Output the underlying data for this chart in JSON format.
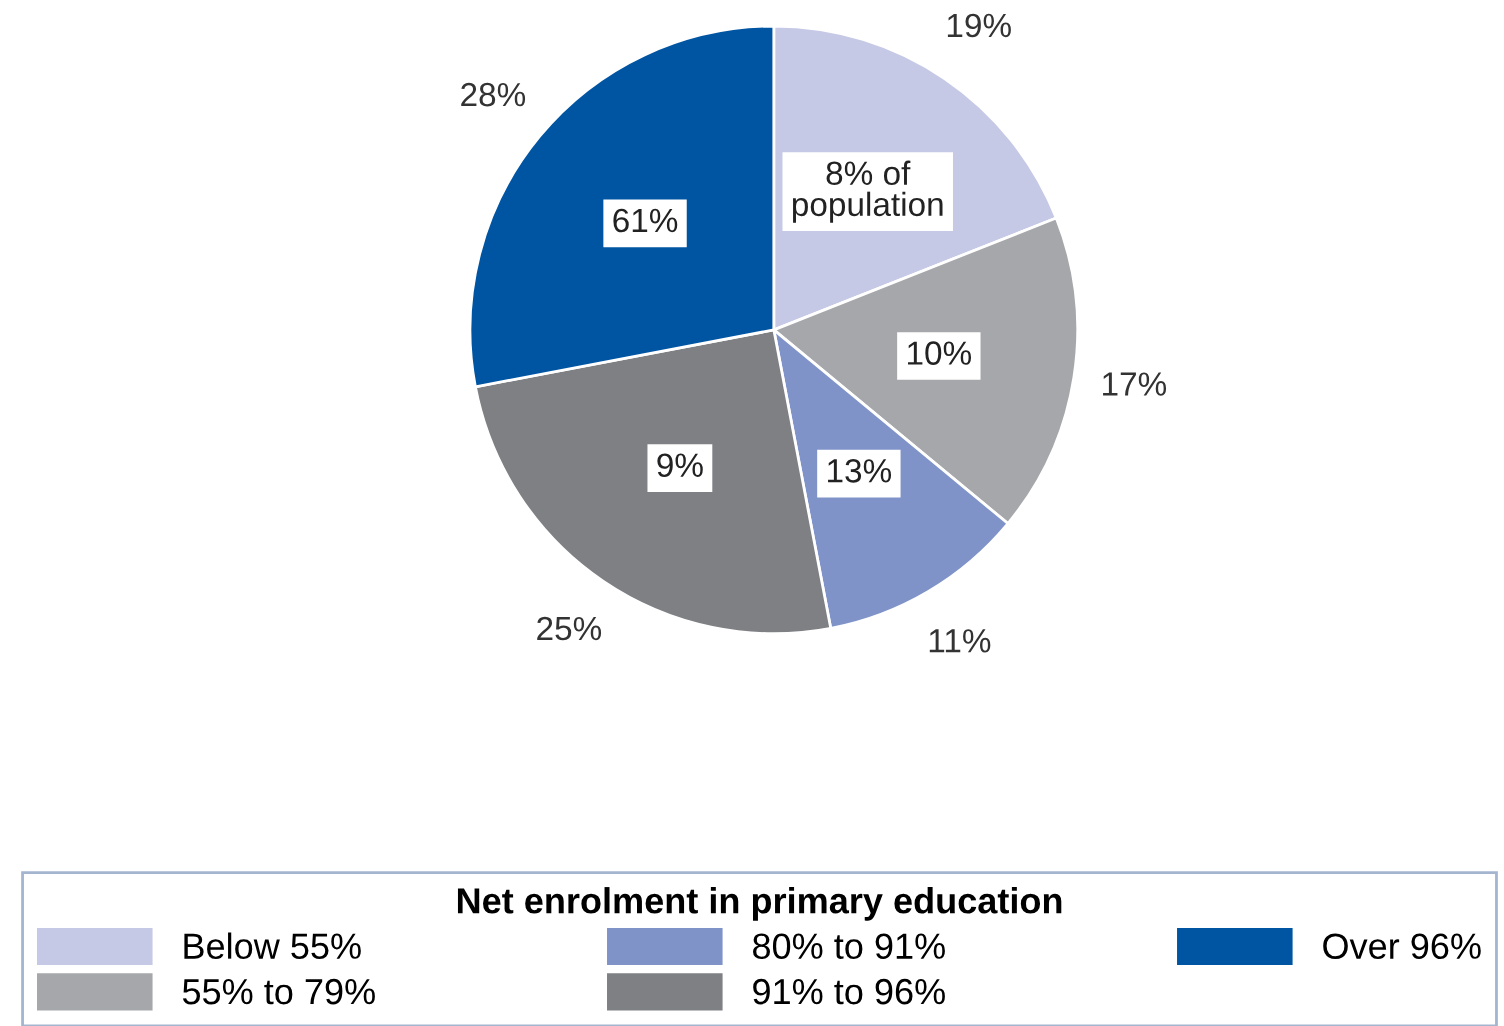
{
  "chart_data": {
    "type": "pie",
    "categories": [
      "Below 55%",
      "55% to 79%",
      "80% to 91%",
      "91% to 96%",
      "Over 96%"
    ],
    "values": [
      19,
      17,
      11,
      25,
      28
    ],
    "value_labels": [
      "19%",
      "17%",
      "11%",
      "25%",
      "28%"
    ],
    "colors": [
      "#c5c9e6",
      "#a6a7aa",
      "#7f93c9",
      "#7f8084",
      "#0055a3"
    ],
    "legend_title": "Net enrolment in primary education",
    "legend": "bottom",
    "annotations": [
      {
        "text": "8% of\npopulation",
        "x": "Below 55%"
      },
      {
        "text": "10%",
        "x": "55% to 79%"
      },
      {
        "text": "13%",
        "x": "80% to 91%"
      },
      {
        "text": "9%",
        "x": "91% to 96%"
      },
      {
        "text": "61%",
        "x": "Over 96%"
      }
    ]
  }
}
